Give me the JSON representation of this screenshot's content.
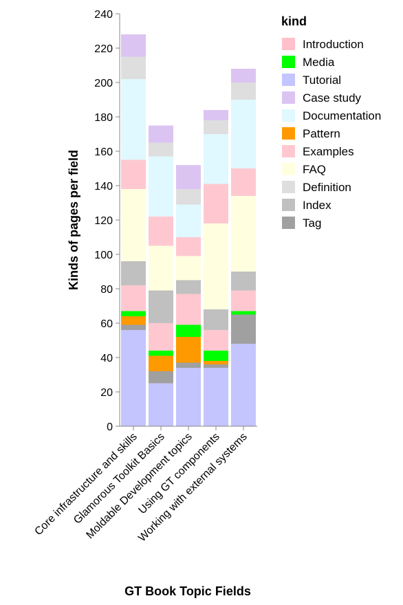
{
  "chart_data": {
    "type": "bar",
    "stacked": true,
    "xlabel": "GT Book Topic Fields",
    "ylabel": "Kinds of pages per field",
    "ylim": [
      0,
      240
    ],
    "yticks": [
      0,
      20,
      40,
      60,
      80,
      100,
      120,
      140,
      160,
      180,
      200,
      220,
      240
    ],
    "grid": false,
    "legend": {
      "title": "kind",
      "position": "right"
    },
    "categories": [
      "Core infrastructure and skills",
      "Glamorous Toolkit Basics",
      "Moldable Development topics",
      "Using GT components",
      "Working with external systems"
    ],
    "series": [
      {
        "name": "Introduction",
        "color": "#ffc0cb",
        "values": [
          0,
          0,
          0,
          0,
          0
        ]
      },
      {
        "name": "Media",
        "color": "#00ff00",
        "values": [
          0,
          0,
          0,
          0,
          0
        ]
      },
      {
        "name": "Tutorial",
        "color": "#c4c4ff",
        "values": [
          0,
          0,
          0,
          0,
          0
        ]
      },
      {
        "name": "Case study",
        "color": "#dcc4f2",
        "values": [
          0,
          0,
          0,
          0,
          0
        ]
      },
      {
        "name": "Documentation",
        "color": "#e0f8ff",
        "values": [
          0,
          0,
          0,
          0,
          0
        ]
      },
      {
        "name": "Pattern",
        "color": "#ff9900",
        "values": [
          0,
          0,
          0,
          0,
          0
        ]
      },
      {
        "name": "Examples",
        "color": "#ffc8d0",
        "values": [
          0,
          0,
          0,
          0,
          0
        ]
      },
      {
        "name": "FAQ",
        "color": "#ffffe0",
        "values": [
          0,
          0,
          0,
          0,
          0
        ]
      },
      {
        "name": "Definition",
        "color": "#dedede",
        "values": [
          0,
          0,
          0,
          0,
          0
        ]
      },
      {
        "name": "Index",
        "color": "#c0c0c0",
        "values": [
          0,
          0,
          0,
          0,
          0
        ]
      },
      {
        "name": "Tag",
        "color": "#a0a0a0",
        "values": [
          0,
          0,
          0,
          0,
          0
        ]
      }
    ],
    "segments": [
      [
        {
          "kind": "Tutorial",
          "value": 56
        },
        {
          "kind": "Tag",
          "value": 3
        },
        {
          "kind": "Pattern",
          "value": 5
        },
        {
          "kind": "Media",
          "value": 3
        },
        {
          "kind": "Examples",
          "value": 15
        },
        {
          "kind": "Index",
          "value": 14
        },
        {
          "kind": "FAQ",
          "value": 42
        },
        {
          "kind": "Examples",
          "value": 17
        },
        {
          "kind": "Documentation",
          "value": 47
        },
        {
          "kind": "Definition",
          "value": 13
        },
        {
          "kind": "Case study",
          "value": 13
        }
      ],
      [
        {
          "kind": "Tutorial",
          "value": 25
        },
        {
          "kind": "Tag",
          "value": 7
        },
        {
          "kind": "Pattern",
          "value": 9
        },
        {
          "kind": "Media",
          "value": 3
        },
        {
          "kind": "Examples",
          "value": 16
        },
        {
          "kind": "Index",
          "value": 19
        },
        {
          "kind": "FAQ",
          "value": 26
        },
        {
          "kind": "Examples",
          "value": 17
        },
        {
          "kind": "Documentation",
          "value": 35
        },
        {
          "kind": "Definition",
          "value": 8
        },
        {
          "kind": "Case study",
          "value": 10
        }
      ],
      [
        {
          "kind": "Tutorial",
          "value": 34
        },
        {
          "kind": "Tag",
          "value": 3
        },
        {
          "kind": "Pattern",
          "value": 15
        },
        {
          "kind": "Media",
          "value": 7
        },
        {
          "kind": "Examples",
          "value": 18
        },
        {
          "kind": "Index",
          "value": 8
        },
        {
          "kind": "FAQ",
          "value": 14
        },
        {
          "kind": "Examples",
          "value": 11
        },
        {
          "kind": "Documentation",
          "value": 19
        },
        {
          "kind": "Definition",
          "value": 9
        },
        {
          "kind": "Case study",
          "value": 14
        }
      ],
      [
        {
          "kind": "Tutorial",
          "value": 34
        },
        {
          "kind": "Tag",
          "value": 2
        },
        {
          "kind": "Pattern",
          "value": 2
        },
        {
          "kind": "Media",
          "value": 6
        },
        {
          "kind": "Examples",
          "value": 12
        },
        {
          "kind": "Index",
          "value": 12
        },
        {
          "kind": "FAQ",
          "value": 50
        },
        {
          "kind": "Examples",
          "value": 23
        },
        {
          "kind": "Documentation",
          "value": 29
        },
        {
          "kind": "Definition",
          "value": 8
        },
        {
          "kind": "Case study",
          "value": 6
        }
      ],
      [
        {
          "kind": "Tutorial",
          "value": 48
        },
        {
          "kind": "Tag",
          "value": 17
        },
        {
          "kind": "Media",
          "value": 2
        },
        {
          "kind": "Examples",
          "value": 12
        },
        {
          "kind": "Index",
          "value": 11
        },
        {
          "kind": "FAQ",
          "value": 44
        },
        {
          "kind": "Examples",
          "value": 16
        },
        {
          "kind": "Documentation",
          "value": 40
        },
        {
          "kind": "Definition",
          "value": 10
        },
        {
          "kind": "Case study",
          "value": 8
        }
      ]
    ]
  }
}
